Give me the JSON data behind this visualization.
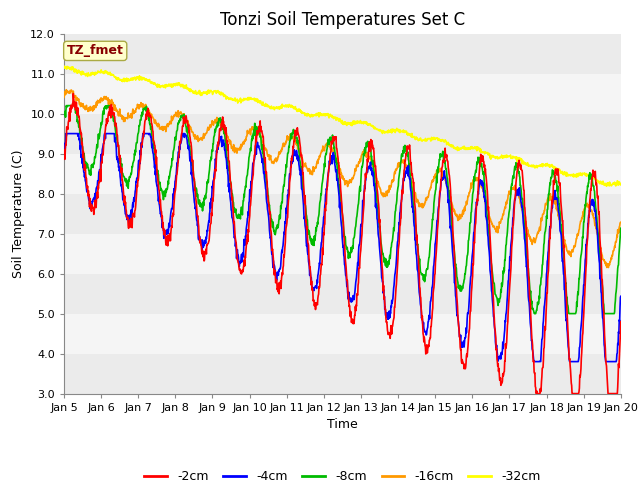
{
  "title": "Tonzi Soil Temperatures Set C",
  "xlabel": "Time",
  "ylabel": "Soil Temperature (C)",
  "ylim": [
    3.0,
    12.0
  ],
  "yticks": [
    3.0,
    4.0,
    5.0,
    6.0,
    7.0,
    8.0,
    9.0,
    10.0,
    11.0,
    12.0
  ],
  "xtick_labels": [
    "Jan 5",
    "Jan 6",
    "Jan 7",
    "Jan 8",
    "Jan 9",
    "Jan 10",
    "Jan 11",
    "Jan 12",
    "Jan 13",
    "Jan 14",
    "Jan 15",
    "Jan 16",
    "Jan 17",
    "Jan 18",
    "Jan 19",
    "Jan 20"
  ],
  "series_colors": [
    "#ff0000",
    "#0000ff",
    "#00bb00",
    "#ff9900",
    "#ffff00"
  ],
  "series_labels": [
    "-2cm",
    "-4cm",
    "-8cm",
    "-16cm",
    "-32cm"
  ],
  "line_width": 1.2,
  "annotation_text": "TZ_fmet",
  "annotation_bg": "#ffffcc",
  "annotation_border": "#aaaa44",
  "annotation_text_color": "#880000",
  "bg_bands": [
    "#ebebeb",
    "#f5f5f5"
  ],
  "title_fontsize": 12,
  "axis_label_fontsize": 9,
  "tick_fontsize": 8
}
